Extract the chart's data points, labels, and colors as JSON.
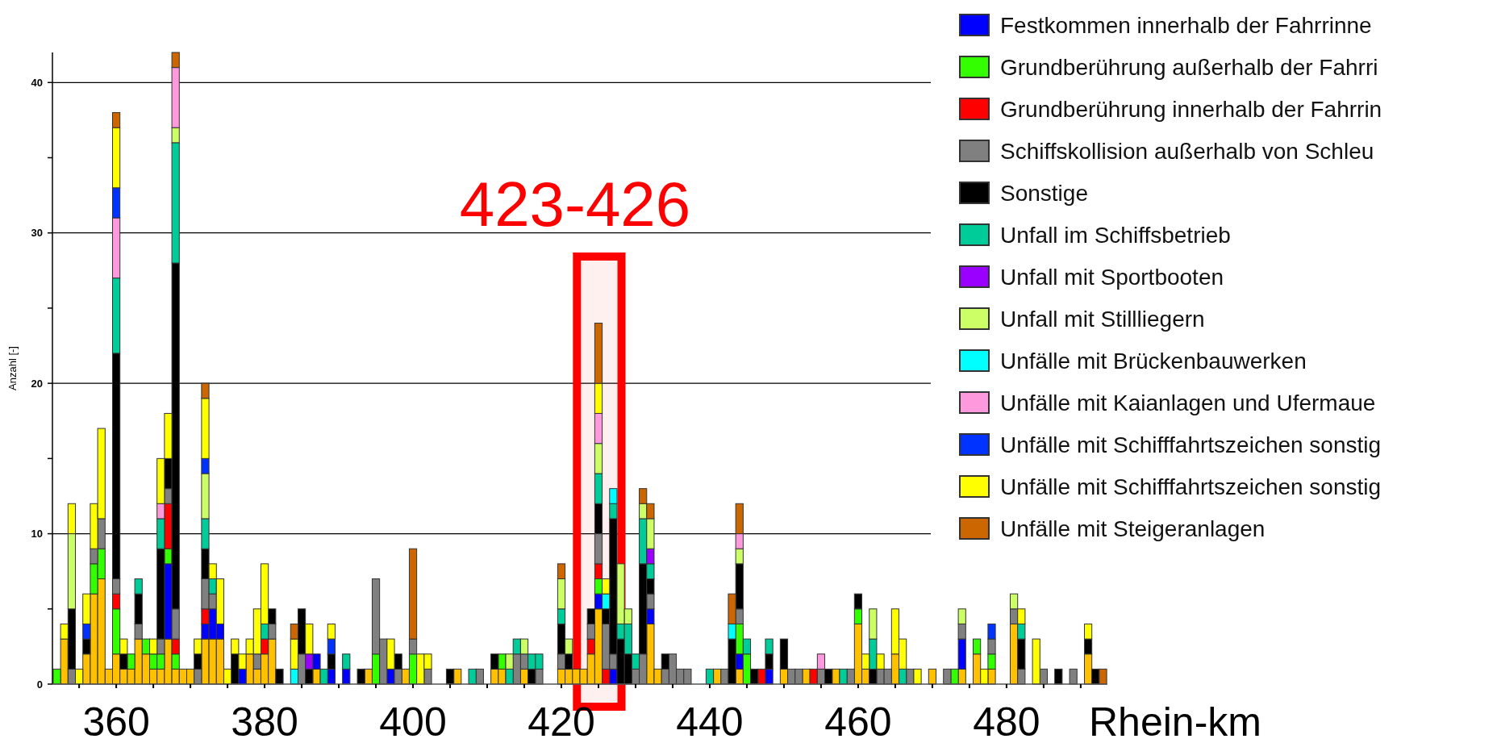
{
  "chart_data": {
    "type": "bar",
    "stacked": true,
    "ylabel": "Anzahl [-]",
    "xlabel": "Rhein-km",
    "xlim": [
      351.4,
      493.6
    ],
    "ylim": [
      0,
      42
    ],
    "xticks": [
      {
        "value": 355,
        "label": null
      },
      360,
      {
        "value": 365,
        "label": null
      },
      {
        "value": 370,
        "label": null
      },
      {
        "value": 375,
        "label": null
      },
      380,
      {
        "value": 385,
        "label": null
      },
      {
        "value": 390,
        "label": null
      },
      {
        "value": 395,
        "label": null
      },
      400,
      {
        "value": 405,
        "label": null
      },
      {
        "value": 410,
        "label": null
      },
      {
        "value": 415,
        "label": null
      },
      420,
      {
        "value": 425,
        "label": null
      },
      {
        "value": 430,
        "label": null
      },
      {
        "value": 435,
        "label": null
      },
      440,
      {
        "value": 445,
        "label": null
      },
      {
        "value": 450,
        "label": null
      },
      {
        "value": 455,
        "label": null
      },
      460,
      {
        "value": 465,
        "label": null
      },
      {
        "value": 470,
        "label": null
      },
      {
        "value": 475,
        "label": null
      },
      480,
      {
        "value": 485,
        "label": null
      },
      {
        "value": 490,
        "label": null
      }
    ],
    "yticks": [
      0,
      {
        "value": 5,
        "label": null
      },
      10,
      {
        "value": 15,
        "label": null
      },
      20,
      {
        "value": 25,
        "label": null
      },
      30,
      {
        "value": 35,
        "label": null
      },
      40
    ],
    "grid": "y",
    "legend": "right",
    "bands": [
      {
        "axis": "x",
        "from": 422.1,
        "to": 428.1,
        "label": "423-426",
        "color": "#ff0000"
      }
    ],
    "x": [
      352,
      353,
      354,
      355,
      356,
      357,
      358,
      359,
      360,
      361,
      362,
      363,
      364,
      365,
      366,
      367,
      368,
      369,
      370,
      371,
      372,
      373,
      374,
      375,
      376,
      377,
      378,
      379,
      380,
      381,
      382,
      384,
      385,
      386,
      387,
      388,
      389,
      391,
      393,
      394,
      395,
      396,
      397,
      398,
      399,
      400,
      401,
      402,
      405,
      406,
      408,
      409,
      411,
      412,
      413,
      414,
      415,
      416,
      417,
      420,
      421,
      422,
      423,
      424,
      425,
      426,
      427,
      428,
      429,
      430,
      431,
      432,
      433,
      434,
      435,
      436,
      437,
      440,
      441,
      442,
      443,
      444,
      445,
      446,
      447,
      448,
      450,
      451,
      452,
      453,
      454,
      455,
      456,
      457,
      458,
      459,
      460,
      461,
      462,
      463,
      464,
      465,
      466,
      467,
      468,
      470,
      472,
      473,
      474,
      476,
      477,
      478,
      481,
      482,
      484,
      485,
      487,
      489,
      491,
      492,
      493
    ],
    "series": [
      {
        "color": "#ffc000",
        "values": [
          null,
          3,
          null,
          null,
          2,
          6,
          7,
          1,
          2,
          1,
          1,
          3,
          2,
          1,
          1,
          3,
          1,
          1,
          1,
          null,
          3,
          3,
          3,
          null,
          null,
          null,
          2,
          1,
          2,
          3,
          null,
          null,
          null,
          null,
          1,
          null,
          null,
          null,
          null,
          1,
          null,
          null,
          null,
          null,
          1,
          null,
          null,
          null,
          null,
          1,
          null,
          null,
          1,
          1,
          null,
          null,
          1,
          null,
          null,
          1,
          1,
          1,
          1,
          2,
          5,
          null,
          null,
          null,
          null,
          null,
          null,
          4,
          1,
          null,
          null,
          null,
          null,
          null,
          1,
          null,
          null,
          1,
          null,
          null,
          null,
          null,
          1,
          null,
          null,
          1,
          null,
          null,
          null,
          1,
          null,
          null,
          4,
          1,
          null,
          null,
          null,
          2,
          null,
          null,
          null,
          1,
          null,
          null,
          1,
          2,
          null,
          1,
          4,
          null,
          null,
          null,
          null,
          null,
          2,
          null,
          null
        ]
      },
      {
        "name": "Festkommen innerhalb der Fahrrinne",
        "color": "#0000ff",
        "values": [
          null,
          null,
          null,
          null,
          null,
          null,
          null,
          null,
          null,
          null,
          null,
          null,
          null,
          null,
          null,
          5,
          null,
          null,
          null,
          null,
          1,
          2,
          1,
          null,
          null,
          1,
          null,
          null,
          null,
          null,
          null,
          null,
          null,
          null,
          1,
          null,
          1,
          1,
          null,
          null,
          null,
          null,
          1,
          null,
          null,
          null,
          null,
          null,
          null,
          null,
          null,
          null,
          null,
          null,
          null,
          null,
          null,
          null,
          null,
          null,
          null,
          null,
          null,
          null,
          1,
          null,
          1,
          null,
          null,
          null,
          null,
          1,
          null,
          null,
          null,
          null,
          null,
          null,
          null,
          null,
          null,
          1,
          null,
          null,
          null,
          1,
          null,
          null,
          null,
          null,
          null,
          null,
          null,
          null,
          null,
          null,
          null,
          null,
          null,
          null,
          null,
          null,
          null,
          null,
          null,
          null,
          null,
          null,
          2,
          null,
          null,
          null,
          null,
          null,
          null,
          null,
          null,
          null,
          null,
          null,
          null
        ]
      },
      {
        "name": "Grundberührung außerhalb der Fahrri",
        "color": "#33ff00",
        "values": [
          1,
          null,
          null,
          null,
          null,
          2,
          2,
          null,
          3,
          null,
          1,
          null,
          1,
          1,
          1,
          1,
          1,
          null,
          null,
          null,
          null,
          null,
          null,
          null,
          null,
          null,
          null,
          null,
          null,
          null,
          null,
          null,
          null,
          null,
          null,
          null,
          null,
          null,
          null,
          null,
          2,
          null,
          null,
          null,
          null,
          2,
          null,
          null,
          null,
          null,
          null,
          null,
          null,
          1,
          null,
          null,
          null,
          null,
          null,
          null,
          null,
          null,
          null,
          null,
          1,
          null,
          null,
          null,
          null,
          null,
          null,
          null,
          null,
          null,
          null,
          null,
          null,
          null,
          null,
          null,
          null,
          2,
          2,
          null,
          null,
          null,
          null,
          null,
          null,
          null,
          null,
          null,
          null,
          null,
          null,
          null,
          1,
          null,
          null,
          null,
          null,
          null,
          null,
          null,
          null,
          null,
          null,
          1,
          null,
          1,
          null,
          1,
          null,
          null,
          null,
          null,
          null,
          null,
          null,
          null,
          null
        ]
      },
      {
        "name": "Grundberührung innerhalb der Fahrrin",
        "color": "#ff0000",
        "values": [
          null,
          null,
          null,
          null,
          null,
          null,
          null,
          null,
          1,
          null,
          null,
          null,
          null,
          null,
          null,
          3,
          1,
          null,
          null,
          null,
          1,
          null,
          null,
          null,
          null,
          null,
          null,
          null,
          1,
          null,
          null,
          null,
          null,
          null,
          null,
          null,
          null,
          null,
          null,
          null,
          null,
          null,
          null,
          null,
          null,
          null,
          null,
          null,
          null,
          null,
          null,
          null,
          null,
          null,
          null,
          null,
          null,
          null,
          null,
          null,
          null,
          null,
          null,
          1,
          1,
          1,
          null,
          null,
          null,
          null,
          null,
          null,
          null,
          null,
          null,
          null,
          null,
          null,
          null,
          null,
          null,
          null,
          null,
          null,
          1,
          null,
          null,
          null,
          null,
          null,
          1,
          null,
          null,
          null,
          null,
          null,
          null,
          null,
          null,
          null,
          null,
          null,
          null,
          null,
          null,
          null,
          null,
          null,
          null,
          null,
          null,
          null,
          null,
          null,
          null,
          null,
          null,
          null,
          null,
          null,
          null
        ]
      },
      {
        "name": "Schiffskollision außerhalb von Schleu",
        "color": "#808080",
        "values": [
          null,
          null,
          1,
          null,
          null,
          1,
          2,
          null,
          1,
          null,
          null,
          1,
          null,
          null,
          1,
          1,
          2,
          null,
          null,
          1,
          2,
          1,
          null,
          null,
          null,
          null,
          null,
          1,
          null,
          1,
          null,
          null,
          2,
          null,
          null,
          null,
          null,
          null,
          null,
          null,
          5,
          3,
          null,
          1,
          null,
          1,
          null,
          1,
          null,
          null,
          null,
          1,
          null,
          null,
          null,
          2,
          1,
          null,
          1,
          1,
          null,
          null,
          null,
          1,
          2,
          3,
          1,
          null,
          null,
          1,
          2,
          1,
          null,
          1,
          2,
          1,
          1,
          null,
          null,
          1,
          null,
          1,
          null,
          null,
          null,
          null,
          null,
          1,
          1,
          null,
          null,
          1,
          null,
          null,
          null,
          1,
          null,
          null,
          null,
          1,
          1,
          null,
          null,
          1,
          null,
          null,
          1,
          null,
          1,
          null,
          null,
          1,
          1,
          1,
          null,
          1,
          null,
          1,
          null,
          null,
          null
        ]
      },
      {
        "name": "Sonstige",
        "color": "#000000",
        "values": [
          null,
          null,
          4,
          null,
          1,
          null,
          null,
          null,
          15,
          1,
          null,
          2,
          null,
          null,
          6,
          2,
          23,
          null,
          null,
          1,
          2,
          null,
          null,
          null,
          2,
          null,
          null,
          null,
          null,
          1,
          1,
          null,
          3,
          1,
          null,
          null,
          1,
          null,
          1,
          null,
          null,
          null,
          null,
          1,
          null,
          null,
          null,
          null,
          1,
          null,
          null,
          null,
          1,
          null,
          null,
          null,
          null,
          1,
          null,
          2,
          1,
          null,
          null,
          1,
          2,
          1,
          9,
          3,
          2,
          null,
          6,
          1,
          null,
          1,
          null,
          null,
          null,
          null,
          null,
          null,
          3,
          3,
          null,
          1,
          null,
          1,
          2,
          null,
          null,
          null,
          null,
          null,
          1,
          null,
          null,
          null,
          1,
          null,
          1,
          null,
          null,
          null,
          null,
          null,
          null,
          null,
          null,
          null,
          null,
          null,
          null,
          null,
          null,
          2,
          null,
          null,
          1,
          null,
          1,
          1,
          null
        ]
      },
      {
        "name": "Unfall im Schiffsbetrieb",
        "color": "#00cc99",
        "values": [
          null,
          null,
          null,
          null,
          null,
          null,
          null,
          null,
          5,
          null,
          null,
          1,
          null,
          null,
          2,
          null,
          8,
          null,
          null,
          null,
          2,
          1,
          null,
          null,
          null,
          null,
          null,
          null,
          1,
          null,
          null,
          null,
          null,
          null,
          null,
          1,
          null,
          1,
          null,
          null,
          null,
          null,
          null,
          null,
          null,
          null,
          null,
          null,
          null,
          null,
          1,
          null,
          null,
          null,
          1,
          1,
          null,
          1,
          1,
          1,
          null,
          null,
          null,
          null,
          2,
          null,
          1,
          1,
          2,
          1,
          3,
          1,
          null,
          null,
          null,
          null,
          null,
          1,
          null,
          null,
          null,
          null,
          1,
          null,
          null,
          1,
          null,
          null,
          null,
          null,
          null,
          null,
          null,
          null,
          1,
          null,
          null,
          null,
          2,
          null,
          null,
          null,
          1,
          null,
          null,
          null,
          null,
          null,
          null,
          null,
          null,
          null,
          null,
          1,
          null,
          null,
          null,
          null,
          null,
          null,
          null
        ]
      },
      {
        "name": "Unfall mit Sportbooten",
        "color": "#9900ff",
        "values": [
          null,
          null,
          null,
          null,
          null,
          null,
          null,
          null,
          null,
          null,
          null,
          null,
          null,
          null,
          null,
          null,
          null,
          null,
          null,
          null,
          null,
          null,
          null,
          null,
          null,
          null,
          null,
          null,
          null,
          null,
          null,
          null,
          null,
          1,
          null,
          null,
          null,
          null,
          null,
          null,
          null,
          null,
          null,
          null,
          null,
          null,
          null,
          null,
          null,
          null,
          null,
          null,
          null,
          null,
          null,
          null,
          null,
          null,
          null,
          null,
          null,
          null,
          null,
          null,
          null,
          null,
          null,
          null,
          null,
          null,
          null,
          1,
          null,
          null,
          null,
          null,
          null,
          null,
          null,
          null,
          null,
          null,
          null,
          null,
          null,
          null,
          null,
          null,
          null,
          null,
          null,
          null,
          null,
          null,
          null,
          null,
          null,
          null,
          null,
          null,
          null,
          null,
          null,
          null,
          null,
          null,
          null,
          null,
          null,
          null,
          null,
          null,
          null,
          null,
          null,
          null,
          null,
          null,
          null,
          null,
          null
        ]
      },
      {
        "name": "Unfall mit Stillliegern",
        "color": "#ccff66",
        "values": [
          null,
          null,
          5,
          null,
          null,
          null,
          null,
          null,
          null,
          null,
          null,
          null,
          null,
          null,
          null,
          null,
          1,
          null,
          null,
          null,
          3,
          null,
          null,
          null,
          null,
          null,
          null,
          null,
          null,
          null,
          null,
          null,
          null,
          null,
          null,
          null,
          null,
          null,
          null,
          null,
          null,
          null,
          null,
          null,
          null,
          null,
          null,
          null,
          null,
          null,
          null,
          null,
          null,
          null,
          1,
          null,
          1,
          null,
          null,
          2,
          1,
          null,
          null,
          null,
          2,
          null,
          null,
          4,
          1,
          null,
          1,
          2,
          null,
          null,
          null,
          null,
          null,
          null,
          null,
          null,
          null,
          1,
          null,
          null,
          null,
          null,
          null,
          null,
          null,
          null,
          null,
          null,
          null,
          null,
          null,
          null,
          null,
          null,
          2,
          null,
          null,
          null,
          null,
          null,
          null,
          null,
          null,
          null,
          1,
          null,
          null,
          null,
          1,
          null,
          null,
          null,
          null,
          null,
          null,
          null,
          null
        ]
      },
      {
        "name": "Unfälle mit Brückenbauwerken",
        "color": "#00ffff",
        "values": [
          null,
          null,
          null,
          null,
          null,
          null,
          null,
          null,
          null,
          null,
          null,
          null,
          null,
          null,
          null,
          null,
          null,
          null,
          null,
          null,
          null,
          null,
          null,
          null,
          null,
          null,
          null,
          null,
          null,
          null,
          null,
          1,
          null,
          null,
          null,
          null,
          null,
          null,
          null,
          null,
          null,
          null,
          null,
          null,
          null,
          null,
          null,
          null,
          null,
          null,
          null,
          null,
          null,
          null,
          null,
          null,
          null,
          null,
          null,
          null,
          null,
          null,
          null,
          null,
          null,
          1,
          1,
          null,
          null,
          null,
          null,
          null,
          null,
          null,
          null,
          null,
          null,
          null,
          null,
          null,
          1,
          null,
          null,
          null,
          null,
          null,
          null,
          null,
          null,
          null,
          null,
          null,
          null,
          null,
          null,
          null,
          null,
          null,
          null,
          null,
          null,
          null,
          null,
          null,
          null,
          null,
          null,
          null,
          null,
          null,
          null,
          null,
          null,
          null,
          null,
          null,
          null,
          null,
          null,
          null,
          null
        ]
      },
      {
        "name": "Unfälle mit Kaianlagen und Ufermaue",
        "color": "#ff99dd",
        "values": [
          null,
          null,
          null,
          null,
          null,
          null,
          null,
          null,
          4,
          null,
          null,
          null,
          null,
          null,
          1,
          null,
          4,
          null,
          null,
          null,
          null,
          null,
          null,
          null,
          null,
          null,
          null,
          null,
          null,
          null,
          null,
          null,
          null,
          null,
          null,
          null,
          null,
          null,
          null,
          null,
          null,
          null,
          null,
          null,
          null,
          null,
          null,
          null,
          null,
          null,
          null,
          null,
          null,
          null,
          null,
          null,
          null,
          null,
          null,
          null,
          null,
          null,
          null,
          null,
          2,
          null,
          null,
          null,
          null,
          null,
          null,
          null,
          null,
          null,
          null,
          null,
          null,
          null,
          null,
          null,
          null,
          1,
          null,
          null,
          null,
          null,
          null,
          null,
          null,
          null,
          null,
          1,
          null,
          null,
          null,
          null,
          null,
          null,
          null,
          null,
          null,
          null,
          null,
          null,
          null,
          null,
          null,
          null,
          null,
          null,
          null,
          null,
          null,
          null,
          null,
          null,
          null,
          null,
          null,
          null,
          null
        ]
      },
      {
        "name": "Unfälle mit Schifffahrtszeichen sonstig",
        "color": "#0033ff",
        "values": [
          null,
          null,
          null,
          null,
          1,
          null,
          null,
          null,
          2,
          null,
          null,
          null,
          null,
          null,
          null,
          null,
          null,
          null,
          null,
          null,
          1,
          null,
          null,
          null,
          null,
          null,
          null,
          null,
          null,
          null,
          null,
          null,
          null,
          null,
          null,
          null,
          1,
          null,
          null,
          null,
          null,
          null,
          null,
          null,
          null,
          null,
          null,
          null,
          null,
          null,
          null,
          null,
          null,
          null,
          null,
          null,
          null,
          null,
          null,
          null,
          null,
          null,
          null,
          null,
          null,
          null,
          null,
          null,
          null,
          null,
          null,
          null,
          null,
          null,
          null,
          null,
          null,
          null,
          null,
          null,
          null,
          null,
          null,
          null,
          null,
          null,
          null,
          null,
          null,
          null,
          null,
          null,
          null,
          null,
          null,
          null,
          null,
          null,
          null,
          null,
          null,
          null,
          null,
          null,
          null,
          null,
          null,
          null,
          null,
          null,
          null,
          1,
          null,
          null,
          null,
          null,
          null,
          null,
          null,
          null,
          null
        ]
      },
      {
        "name": "Unfälle mit Schifffahrtszeichen sonstig",
        "color": "#ffff00",
        "values": [
          null,
          1,
          2,
          1,
          2,
          3,
          6,
          null,
          4,
          1,
          null,
          null,
          null,
          1,
          3,
          3,
          null,
          null,
          null,
          1,
          4,
          1,
          3,
          1,
          1,
          1,
          1,
          3,
          4,
          null,
          null,
          2,
          null,
          2,
          null,
          null,
          1,
          null,
          null,
          null,
          null,
          null,
          2,
          null,
          null,
          null,
          2,
          1,
          null,
          null,
          null,
          null,
          null,
          null,
          null,
          null,
          null,
          null,
          null,
          null,
          null,
          null,
          null,
          null,
          2,
          1,
          null,
          null,
          null,
          null,
          null,
          null,
          null,
          null,
          null,
          null,
          null,
          null,
          null,
          null,
          null,
          null,
          null,
          null,
          null,
          null,
          null,
          null,
          null,
          null,
          null,
          null,
          null,
          null,
          null,
          null,
          null,
          1,
          null,
          1,
          null,
          3,
          2,
          null,
          1,
          null,
          null,
          null,
          null,
          null,
          1,
          null,
          null,
          1,
          3,
          null,
          null,
          null,
          1,
          null,
          null
        ]
      },
      {
        "name": "Unfälle mit Steigeranlagen",
        "color": "#cc6600",
        "values": [
          null,
          null,
          null,
          null,
          null,
          null,
          null,
          null,
          1,
          null,
          null,
          null,
          null,
          null,
          null,
          null,
          1,
          null,
          null,
          null,
          1,
          null,
          null,
          null,
          null,
          null,
          null,
          null,
          null,
          null,
          null,
          1,
          null,
          null,
          null,
          null,
          null,
          null,
          null,
          null,
          null,
          null,
          null,
          null,
          null,
          6,
          null,
          null,
          null,
          null,
          null,
          null,
          null,
          null,
          null,
          null,
          null,
          null,
          null,
          1,
          null,
          null,
          null,
          null,
          4,
          null,
          null,
          null,
          null,
          null,
          1,
          1,
          null,
          null,
          null,
          null,
          null,
          null,
          null,
          null,
          2,
          2,
          null,
          null,
          null,
          null,
          null,
          null,
          null,
          null,
          null,
          null,
          null,
          null,
          null,
          null,
          null,
          null,
          null,
          null,
          null,
          null,
          null,
          null,
          null,
          null,
          null,
          null,
          null,
          null,
          null,
          null,
          null,
          null,
          null,
          null,
          null,
          null,
          null,
          null,
          1
        ]
      }
    ]
  }
}
